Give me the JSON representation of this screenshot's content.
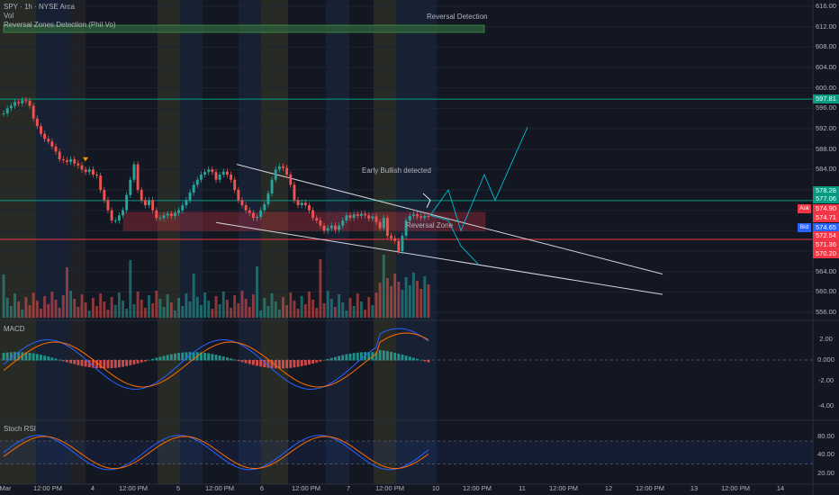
{
  "header": {
    "symbol_line": "SPY · 1h · NYSE Arca",
    "volume_label": "Vol",
    "indicator_label": "Reversal Zones Detection (Phil Vo)",
    "indicator_banner": "Reversal Detection"
  },
  "annotations": {
    "early_bullish": "Early Bullish detected",
    "reversal_zone": "Reversal Zone"
  },
  "price_axis": [
    "616.00",
    "612.00",
    "608.00",
    "604.00",
    "600.00",
    "596.00",
    "592.00",
    "588.00",
    "584.00",
    "580.00",
    "576.00",
    "572.00",
    "568.00",
    "564.00",
    "560.00",
    "556.00"
  ],
  "price_tags": [
    {
      "value": "597.81",
      "color": "#089981"
    },
    {
      "value": "578.28",
      "color": "#089981"
    },
    {
      "value": "577.06",
      "color": "#089981"
    },
    {
      "value": "574.90",
      "color": "#f23645",
      "prefix": "Ask"
    },
    {
      "value": "574.71",
      "color": "#f23645"
    },
    {
      "value": "574.65",
      "color": "#2962ff",
      "prefix": "Bid"
    },
    {
      "value": "572.54",
      "color": "#f23645"
    },
    {
      "value": "571.36",
      "color": "#f23645"
    },
    {
      "value": "570.20",
      "color": "#f23645"
    }
  ],
  "macd": {
    "title": "MACD",
    "axis": [
      "2.00",
      "0.000",
      "-2.00",
      "-4.00"
    ]
  },
  "stoch": {
    "title": "Stoch RSI",
    "axis": [
      "80.00",
      "40.00",
      "20.00"
    ]
  },
  "time_axis": [
    "Mar",
    "12:00 PM",
    "4",
    "12:00 PM",
    "5",
    "12:00 PM",
    "6",
    "12:00 PM",
    "7",
    "12:00 PM",
    "10",
    "12:00 PM",
    "11",
    "12:00 PM",
    "12",
    "12:00 PM",
    "13",
    "12:00 PM",
    "14"
  ],
  "colors": {
    "up": "#26a69a",
    "down": "#ef5350",
    "zone": "#f23645",
    "level": "#089981",
    "macd": "#2962ff",
    "signal": "#ff6d00"
  }
}
